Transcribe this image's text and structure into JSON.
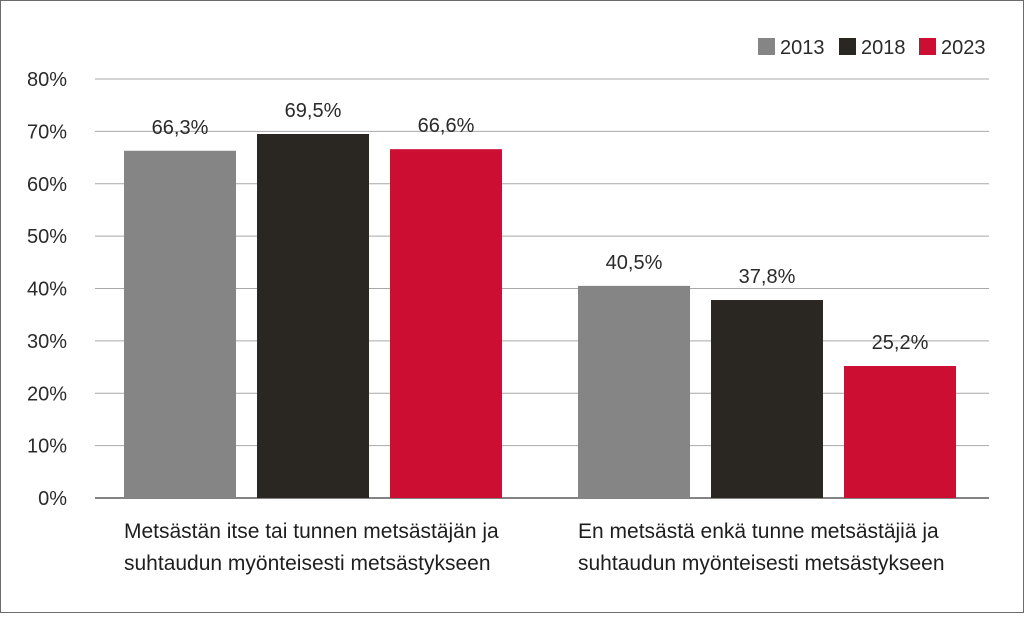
{
  "chart_data": {
    "type": "bar",
    "title": "",
    "xlabel": "",
    "ylabel": "",
    "ylim": [
      0,
      80
    ],
    "yticks": [
      0,
      10,
      20,
      30,
      40,
      50,
      60,
      70,
      80
    ],
    "ytick_labels": [
      "0%",
      "10%",
      "20%",
      "30%",
      "40%",
      "50%",
      "60%",
      "70%",
      "80%"
    ],
    "categories": [
      [
        "Metsästän itse tai tunnen metsästäjän ja",
        "suhtaudun myönteisesti metsästykseen"
      ],
      [
        "En metsästä enkä tunne metsästäjiä ja",
        "suhtaudun myönteisesti metsästykseen"
      ]
    ],
    "series": [
      {
        "name": "2013",
        "color": "#858585",
        "values": [
          66.3,
          40.5
        ],
        "labels": [
          "66,3%",
          "40,5%"
        ]
      },
      {
        "name": "2018",
        "color": "#2a2622",
        "values": [
          69.5,
          37.8
        ],
        "labels": [
          "69,5%",
          "37,8%"
        ]
      },
      {
        "name": "2023",
        "color": "#cc0e33",
        "values": [
          66.6,
          25.2
        ],
        "labels": [
          "66,6%",
          "25,2%"
        ]
      }
    ],
    "grid": true,
    "legend_position": "top-right"
  }
}
